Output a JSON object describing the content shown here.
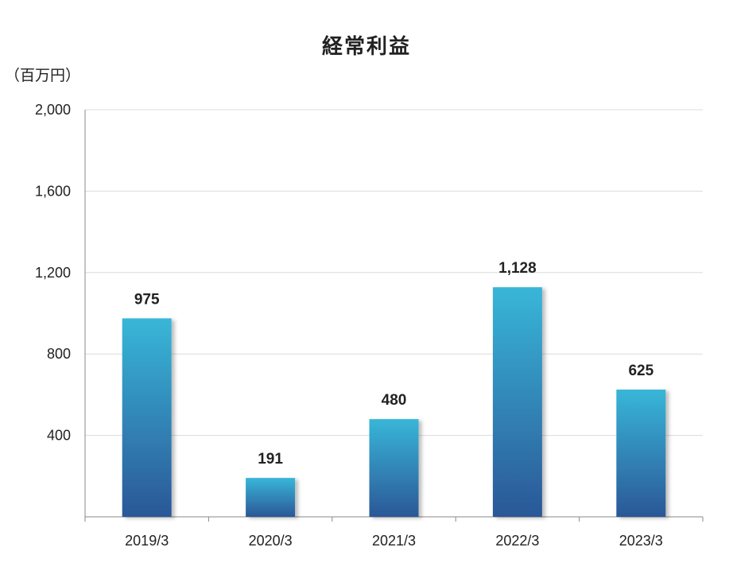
{
  "chart_data": {
    "type": "bar",
    "title": "経常利益",
    "unit_label": "（百万円）",
    "categories": [
      "2019/3",
      "2020/3",
      "2021/3",
      "2022/3",
      "2023/3"
    ],
    "values": [
      975,
      191,
      480,
      1128,
      625
    ],
    "value_labels": [
      "975",
      "191",
      "480",
      "1,128",
      "625"
    ],
    "ylim": [
      0,
      2000
    ],
    "yticks": [
      400,
      800,
      1200,
      1600,
      2000
    ],
    "ytick_labels": [
      "400",
      "800",
      "1,200",
      "1,600",
      "2,000"
    ],
    "grid": true,
    "bar_color_top": "#38b6d8",
    "bar_color_bottom": "#2b5797"
  }
}
